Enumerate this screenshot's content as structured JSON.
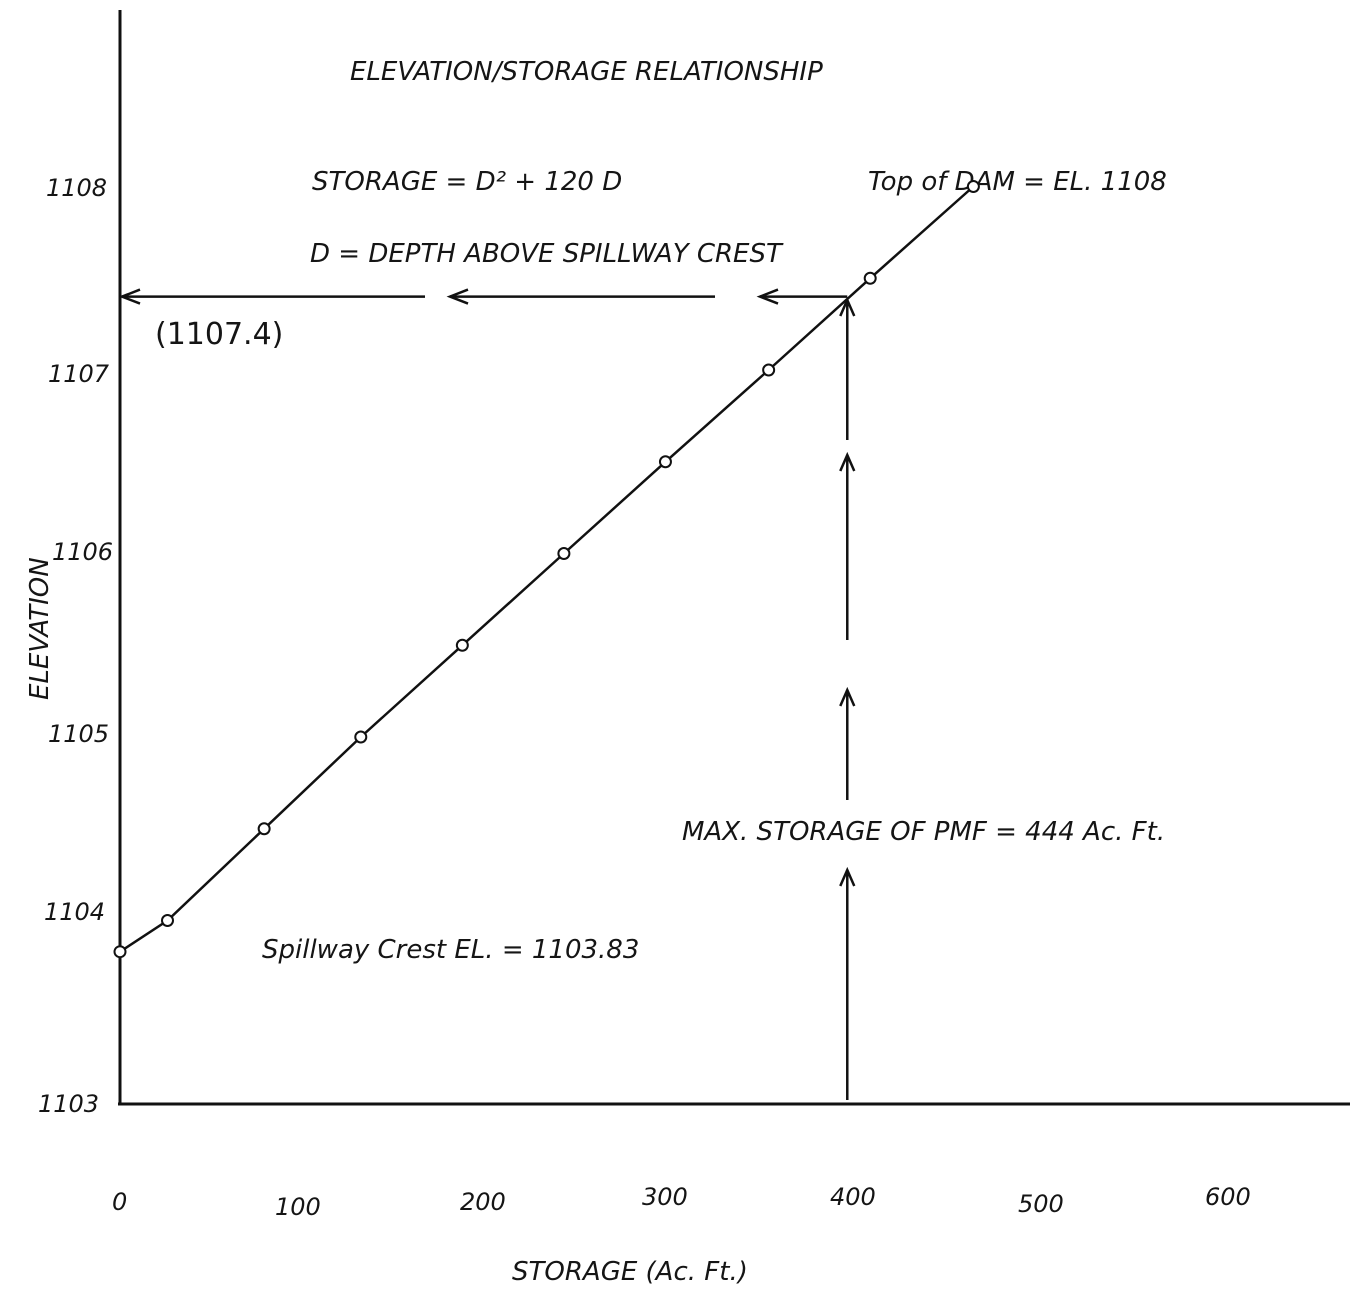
{
  "chart_data": {
    "type": "line",
    "title": "ELEVATION/STORAGE RELATIONSHIP",
    "xlabel": "STORAGE (Ac. Ft.)",
    "ylabel": "ELEVATION",
    "xlim": [
      0,
      600
    ],
    "ylim": [
      1103,
      1108
    ],
    "x_ticks": [
      "0",
      "100",
      "200",
      "300",
      "400",
      "500",
      "600"
    ],
    "y_ticks": [
      "1103",
      "1104",
      "1105",
      "1106",
      "1107",
      "1108"
    ],
    "grid": false,
    "series": [
      {
        "points": [
          {
            "x": 0,
            "y": 1103.83
          },
          {
            "x": 29,
            "y": 1104.0
          },
          {
            "x": 88,
            "y": 1104.5
          },
          {
            "x": 147,
            "y": 1105.0
          },
          {
            "x": 209,
            "y": 1105.5
          },
          {
            "x": 271,
            "y": 1106.0
          },
          {
            "x": 333,
            "y": 1106.5
          },
          {
            "x": 396,
            "y": 1107.0
          },
          {
            "x": 458,
            "y": 1107.5
          },
          {
            "x": 521,
            "y": 1108.0
          }
        ]
      }
    ],
    "annotations": {
      "formula": "STORAGE = D² + 120 D",
      "definition": "D = DEPTH ABOVE SPILLWAY CREST",
      "top_of_dam": "Top of DAM = EL. 1108",
      "max_storage": "MAX. STORAGE OF PMF = 444 Ac. Ft.",
      "spillway_crest": "Spillway Crest EL. = 1103.83",
      "readout": "(1107.4)"
    },
    "reference_lines": {
      "max_storage_x": 444,
      "readout_elevation": 1107.4
    }
  }
}
